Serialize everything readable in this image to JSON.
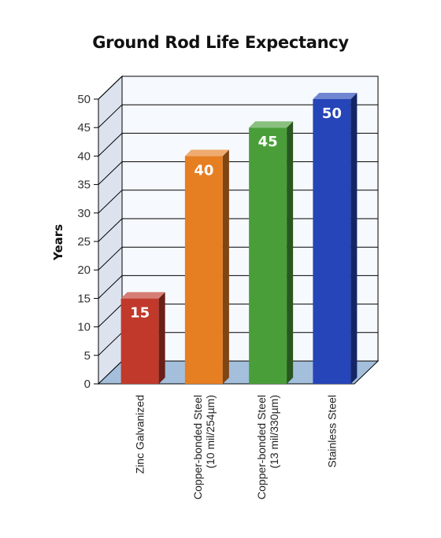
{
  "chart_data": {
    "type": "bar",
    "title": "Ground Rod Life Expectancy",
    "ylabel": "Years",
    "xlabel": "",
    "ylim": [
      0,
      50
    ],
    "yticks": [
      0,
      5,
      10,
      15,
      20,
      25,
      30,
      35,
      40,
      45,
      50
    ],
    "ytick_labels": [
      "0",
      "5",
      "10",
      "15",
      "20",
      "25",
      "30",
      "35",
      "40",
      "45",
      "50"
    ],
    "categories": [
      [
        "Zinc Galvanized"
      ],
      [
        "Copper-bonded Steel",
        "(10 mil/254µm)"
      ],
      [
        "Copper-bonded Steel",
        "(13 mil/330µm)"
      ],
      [
        "Stainless Steel"
      ]
    ],
    "values": [
      15,
      40,
      45,
      50
    ],
    "value_labels": [
      "15",
      "40",
      "45",
      "50"
    ],
    "colors": [
      "#c0392b",
      "#e67e22",
      "#4a9e3a",
      "#2545b8"
    ],
    "grid": true,
    "style": "3d"
  }
}
